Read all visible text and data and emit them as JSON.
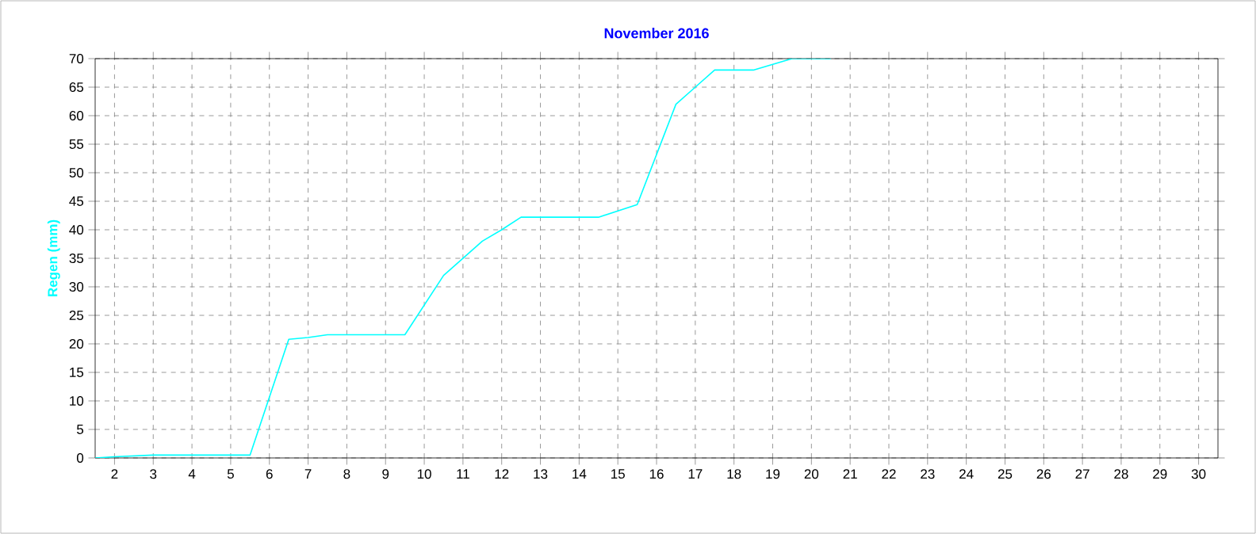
{
  "chart_data": {
    "type": "line",
    "title": "November 2016",
    "ylabel": "Regen  (mm)",
    "series": [
      {
        "color": "#00ffff",
        "x": [
          1.5,
          2,
          3,
          5.5,
          6.5,
          7,
          7.5,
          9.5,
          10.5,
          11,
          11.5,
          12,
          12.5,
          14.5,
          15.5,
          16.5,
          17,
          17.5,
          18.5,
          19.5,
          20.5
        ],
        "values": [
          0,
          0.2,
          0.5,
          0.5,
          20.8,
          21.1,
          21.6,
          21.6,
          32,
          35,
          38,
          40,
          42.2,
          42.2,
          44.4,
          62,
          65,
          68,
          68,
          70,
          70
        ]
      }
    ],
    "xlim": [
      1.5,
      30.5
    ],
    "xticks": [
      2,
      3,
      4,
      5,
      6,
      7,
      8,
      9,
      10,
      11,
      12,
      13,
      14,
      15,
      16,
      17,
      18,
      19,
      20,
      21,
      22,
      23,
      24,
      25,
      26,
      27,
      28,
      29,
      30
    ],
    "ylim": [
      0,
      70
    ],
    "yticks": [
      0,
      5,
      10,
      15,
      20,
      25,
      30,
      35,
      40,
      45,
      50,
      55,
      60,
      65,
      70
    ],
    "grid": true,
    "marker": "none",
    "line_style": "solid"
  }
}
